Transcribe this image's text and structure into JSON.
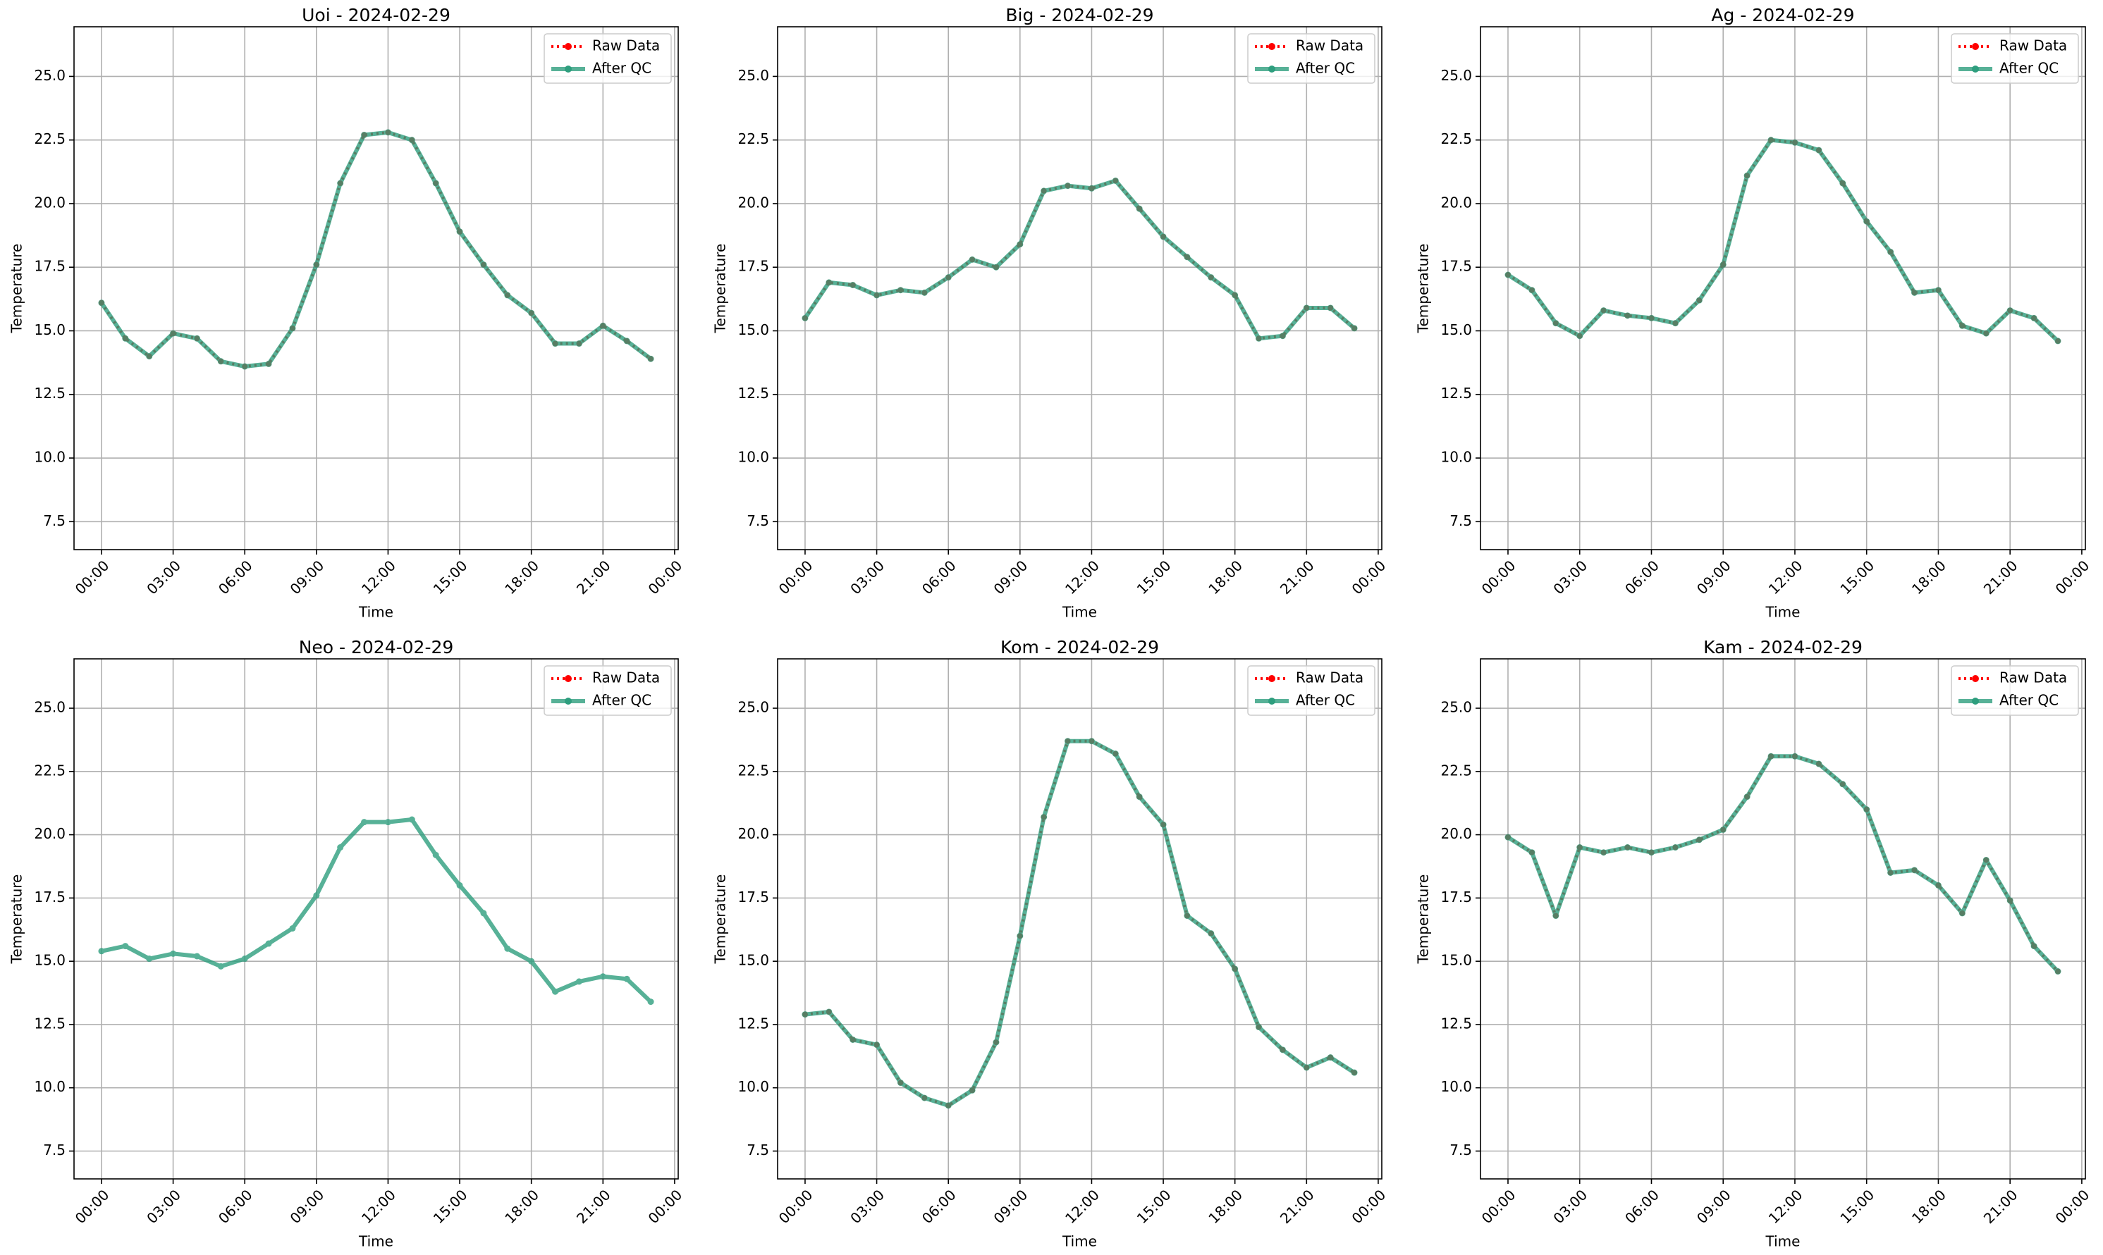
{
  "chart_data": [
    {
      "type": "line",
      "title": "Uoi - 2024-02-29",
      "xlabel": "Time",
      "ylabel": "Temperature",
      "grid": true,
      "legend": "upper right",
      "x": [
        0,
        1,
        2,
        3,
        4,
        5,
        6,
        7,
        8,
        9,
        10,
        11,
        12,
        13,
        14,
        15,
        16,
        17,
        18,
        19,
        20,
        21,
        22,
        23
      ],
      "xlim": [
        -1.15,
        24.15
      ],
      "ylim": [
        6.4,
        26.95
      ],
      "xticks": [
        {
          "value": 0,
          "label": "00:00"
        },
        {
          "value": 3,
          "label": "03:00"
        },
        {
          "value": 6,
          "label": "06:00"
        },
        {
          "value": 9,
          "label": "09:00"
        },
        {
          "value": 12,
          "label": "12:00"
        },
        {
          "value": 15,
          "label": "15:00"
        },
        {
          "value": 18,
          "label": "18:00"
        },
        {
          "value": 21,
          "label": "21:00"
        },
        {
          "value": 24,
          "label": "00:00"
        }
      ],
      "yticks": [
        7.5,
        {
          "value": 10,
          "label": "10.0"
        },
        12.5,
        {
          "value": 15,
          "label": "15.0"
        },
        17.5,
        {
          "value": 20,
          "label": "20.0"
        },
        22.5,
        {
          "value": 25,
          "label": "25.0"
        }
      ],
      "series": [
        {
          "name": "Raw Data",
          "color": "#ff0000",
          "values": [
            16.1,
            14.7,
            14.0,
            14.9,
            14.7,
            13.8,
            13.6,
            13.7,
            15.1,
            17.6,
            20.8,
            22.7,
            22.8,
            22.5,
            20.8,
            18.9,
            17.6,
            16.4,
            15.7,
            14.5,
            14.5,
            15.2,
            14.6,
            13.9
          ]
        },
        {
          "name": "After QC",
          "color": "#2e9e7e",
          "values": [
            16.1,
            14.7,
            14.0,
            14.9,
            14.7,
            13.8,
            13.6,
            13.7,
            15.1,
            17.6,
            20.8,
            22.7,
            22.8,
            22.5,
            20.8,
            18.9,
            17.6,
            16.4,
            15.7,
            14.5,
            14.5,
            15.2,
            14.6,
            13.9
          ]
        }
      ]
    },
    {
      "type": "line",
      "title": "Big - 2024-02-29",
      "xlabel": "Time",
      "ylabel": "Temperature",
      "grid": true,
      "legend": "upper right",
      "x": [
        0,
        1,
        2,
        3,
        4,
        5,
        6,
        7,
        8,
        9,
        10,
        11,
        12,
        13,
        14,
        15,
        16,
        17,
        18,
        19,
        20,
        21,
        22,
        23
      ],
      "xlim": [
        -1.15,
        24.15
      ],
      "ylim": [
        6.4,
        26.95
      ],
      "xticks": [
        {
          "value": 0,
          "label": "00:00"
        },
        {
          "value": 3,
          "label": "03:00"
        },
        {
          "value": 6,
          "label": "06:00"
        },
        {
          "value": 9,
          "label": "09:00"
        },
        {
          "value": 12,
          "label": "12:00"
        },
        {
          "value": 15,
          "label": "15:00"
        },
        {
          "value": 18,
          "label": "18:00"
        },
        {
          "value": 21,
          "label": "21:00"
        },
        {
          "value": 24,
          "label": "00:00"
        }
      ],
      "yticks": [
        7.5,
        {
          "value": 10,
          "label": "10.0"
        },
        12.5,
        {
          "value": 15,
          "label": "15.0"
        },
        17.5,
        {
          "value": 20,
          "label": "20.0"
        },
        22.5,
        {
          "value": 25,
          "label": "25.0"
        }
      ],
      "series": [
        {
          "name": "Raw Data",
          "color": "#ff0000",
          "values": [
            15.5,
            16.9,
            16.8,
            16.4,
            16.6,
            16.5,
            17.1,
            17.8,
            17.5,
            18.4,
            20.5,
            20.7,
            20.6,
            20.9,
            19.8,
            18.7,
            17.9,
            17.1,
            16.4,
            14.7,
            14.8,
            15.9,
            15.9,
            15.1
          ]
        },
        {
          "name": "After QC",
          "color": "#2e9e7e",
          "values": [
            15.5,
            16.9,
            16.8,
            16.4,
            16.6,
            16.5,
            17.1,
            17.8,
            17.5,
            18.4,
            20.5,
            20.7,
            20.6,
            20.9,
            19.8,
            18.7,
            17.9,
            17.1,
            16.4,
            14.7,
            14.8,
            15.9,
            15.9,
            15.1
          ]
        }
      ]
    },
    {
      "type": "line",
      "title": "Ag - 2024-02-29",
      "xlabel": "Time",
      "ylabel": "Temperature",
      "grid": true,
      "legend": "upper right",
      "x": [
        0,
        1,
        2,
        3,
        4,
        5,
        6,
        7,
        8,
        9,
        10,
        11,
        12,
        13,
        14,
        15,
        16,
        17,
        18,
        19,
        20,
        21,
        22,
        23
      ],
      "xlim": [
        -1.15,
        24.15
      ],
      "ylim": [
        6.4,
        26.95
      ],
      "xticks": [
        {
          "value": 0,
          "label": "00:00"
        },
        {
          "value": 3,
          "label": "03:00"
        },
        {
          "value": 6,
          "label": "06:00"
        },
        {
          "value": 9,
          "label": "09:00"
        },
        {
          "value": 12,
          "label": "12:00"
        },
        {
          "value": 15,
          "label": "15:00"
        },
        {
          "value": 18,
          "label": "18:00"
        },
        {
          "value": 21,
          "label": "21:00"
        },
        {
          "value": 24,
          "label": "00:00"
        }
      ],
      "yticks": [
        7.5,
        {
          "value": 10,
          "label": "10.0"
        },
        12.5,
        {
          "value": 15,
          "label": "15.0"
        },
        17.5,
        {
          "value": 20,
          "label": "20.0"
        },
        22.5,
        {
          "value": 25,
          "label": "25.0"
        }
      ],
      "series": [
        {
          "name": "Raw Data",
          "color": "#ff0000",
          "values": [
            17.2,
            16.6,
            15.3,
            14.8,
            15.8,
            15.6,
            15.5,
            15.3,
            16.2,
            17.6,
            21.1,
            22.5,
            22.4,
            22.1,
            20.8,
            19.3,
            18.1,
            16.5,
            16.6,
            15.2,
            14.9,
            15.8,
            15.5,
            14.6
          ]
        },
        {
          "name": "After QC",
          "color": "#2e9e7e",
          "values": [
            17.2,
            16.6,
            15.3,
            14.8,
            15.8,
            15.6,
            15.5,
            15.3,
            16.2,
            17.6,
            21.1,
            22.5,
            22.4,
            22.1,
            20.8,
            19.3,
            18.1,
            16.5,
            16.6,
            15.2,
            14.9,
            15.8,
            15.5,
            14.6
          ]
        }
      ]
    },
    {
      "type": "line",
      "title": "Neo - 2024-02-29",
      "xlabel": "Time",
      "ylabel": "Temperature",
      "grid": true,
      "legend": "upper right",
      "x": [
        0,
        1,
        2,
        3,
        4,
        5,
        6,
        7,
        8,
        9,
        10,
        11,
        12,
        13,
        14,
        15,
        16,
        17,
        18,
        19,
        20,
        21,
        22,
        23
      ],
      "xlim": [
        -1.15,
        24.15
      ],
      "ylim": [
        6.4,
        26.95
      ],
      "xticks": [
        {
          "value": 0,
          "label": "00:00"
        },
        {
          "value": 3,
          "label": "03:00"
        },
        {
          "value": 6,
          "label": "06:00"
        },
        {
          "value": 9,
          "label": "09:00"
        },
        {
          "value": 12,
          "label": "12:00"
        },
        {
          "value": 15,
          "label": "15:00"
        },
        {
          "value": 18,
          "label": "18:00"
        },
        {
          "value": 21,
          "label": "21:00"
        },
        {
          "value": 24,
          "label": "00:00"
        }
      ],
      "yticks": [
        7.5,
        {
          "value": 10,
          "label": "10.0"
        },
        12.5,
        {
          "value": 15,
          "label": "15.0"
        },
        17.5,
        {
          "value": 20,
          "label": "20.0"
        },
        22.5,
        {
          "value": 25,
          "label": "25.0"
        }
      ],
      "series": [
        {
          "name": "Raw Data",
          "color": "#ff0000",
          "values": [
            null,
            null,
            null,
            null,
            null,
            null,
            null,
            null,
            null,
            null,
            null,
            null,
            null,
            null,
            null,
            null,
            null,
            null,
            null,
            null,
            null,
            null,
            null,
            null
          ]
        },
        {
          "name": "After QC",
          "color": "#2e9e7e",
          "values": [
            15.4,
            15.6,
            15.1,
            15.3,
            15.2,
            14.8,
            15.1,
            15.7,
            16.3,
            17.6,
            19.5,
            20.5,
            20.5,
            20.6,
            19.2,
            18.0,
            16.9,
            15.5,
            15.0,
            13.8,
            14.2,
            14.4,
            14.3,
            13.4
          ]
        }
      ]
    },
    {
      "type": "line",
      "title": "Kom - 2024-02-29",
      "xlabel": "Time",
      "ylabel": "Temperature",
      "grid": true,
      "legend": "upper right",
      "x": [
        0,
        1,
        2,
        3,
        4,
        5,
        6,
        7,
        8,
        9,
        10,
        11,
        12,
        13,
        14,
        15,
        16,
        17,
        18,
        19,
        20,
        21,
        22,
        23
      ],
      "xlim": [
        -1.15,
        24.15
      ],
      "ylim": [
        6.4,
        26.95
      ],
      "xticks": [
        {
          "value": 0,
          "label": "00:00"
        },
        {
          "value": 3,
          "label": "03:00"
        },
        {
          "value": 6,
          "label": "06:00"
        },
        {
          "value": 9,
          "label": "09:00"
        },
        {
          "value": 12,
          "label": "12:00"
        },
        {
          "value": 15,
          "label": "15:00"
        },
        {
          "value": 18,
          "label": "18:00"
        },
        {
          "value": 21,
          "label": "21:00"
        },
        {
          "value": 24,
          "label": "00:00"
        }
      ],
      "yticks": [
        7.5,
        {
          "value": 10,
          "label": "10.0"
        },
        12.5,
        {
          "value": 15,
          "label": "15.0"
        },
        17.5,
        {
          "value": 20,
          "label": "20.0"
        },
        22.5,
        {
          "value": 25,
          "label": "25.0"
        }
      ],
      "series": [
        {
          "name": "Raw Data",
          "color": "#ff0000",
          "values": [
            12.9,
            13.0,
            11.9,
            11.7,
            10.2,
            9.6,
            9.3,
            9.9,
            11.8,
            16.0,
            20.7,
            23.7,
            23.7,
            23.2,
            21.5,
            20.4,
            16.8,
            16.1,
            14.7,
            12.4,
            11.5,
            10.8,
            11.2,
            10.6
          ]
        },
        {
          "name": "After QC",
          "color": "#2e9e7e",
          "values": [
            12.9,
            13.0,
            11.9,
            11.7,
            10.2,
            9.6,
            9.3,
            9.9,
            11.8,
            16.0,
            20.7,
            23.7,
            23.7,
            23.2,
            21.5,
            20.4,
            16.8,
            16.1,
            14.7,
            12.4,
            11.5,
            10.8,
            11.2,
            10.6
          ]
        }
      ]
    },
    {
      "type": "line",
      "title": "Kam - 2024-02-29",
      "xlabel": "Time",
      "ylabel": "Temperature",
      "grid": true,
      "legend": "upper right",
      "x": [
        0,
        1,
        2,
        3,
        4,
        5,
        6,
        7,
        8,
        9,
        10,
        11,
        12,
        13,
        14,
        15,
        16,
        17,
        18,
        19,
        20,
        21,
        22,
        23
      ],
      "xlim": [
        -1.15,
        24.15
      ],
      "ylim": [
        6.4,
        26.95
      ],
      "xticks": [
        {
          "value": 0,
          "label": "00:00"
        },
        {
          "value": 3,
          "label": "03:00"
        },
        {
          "value": 6,
          "label": "06:00"
        },
        {
          "value": 9,
          "label": "09:00"
        },
        {
          "value": 12,
          "label": "12:00"
        },
        {
          "value": 15,
          "label": "15:00"
        },
        {
          "value": 18,
          "label": "18:00"
        },
        {
          "value": 21,
          "label": "21:00"
        },
        {
          "value": 24,
          "label": "00:00"
        }
      ],
      "yticks": [
        7.5,
        {
          "value": 10,
          "label": "10.0"
        },
        12.5,
        {
          "value": 15,
          "label": "15.0"
        },
        17.5,
        {
          "value": 20,
          "label": "20.0"
        },
        22.5,
        {
          "value": 25,
          "label": "25.0"
        }
      ],
      "series": [
        {
          "name": "Raw Data",
          "color": "#ff0000",
          "values": [
            19.9,
            19.3,
            16.8,
            19.5,
            19.3,
            19.5,
            19.3,
            19.5,
            19.8,
            20.2,
            21.5,
            23.1,
            23.1,
            22.8,
            22.0,
            21.0,
            18.5,
            18.6,
            18.0,
            16.9,
            19.0,
            17.4,
            15.6,
            14.6
          ]
        },
        {
          "name": "After QC",
          "color": "#2e9e7e",
          "values": [
            19.9,
            19.3,
            16.8,
            19.5,
            19.3,
            19.5,
            19.3,
            19.5,
            19.8,
            20.2,
            21.5,
            23.1,
            23.1,
            22.8,
            22.0,
            21.0,
            18.5,
            18.6,
            18.0,
            16.9,
            19.0,
            17.4,
            15.6,
            14.6
          ]
        }
      ]
    }
  ]
}
